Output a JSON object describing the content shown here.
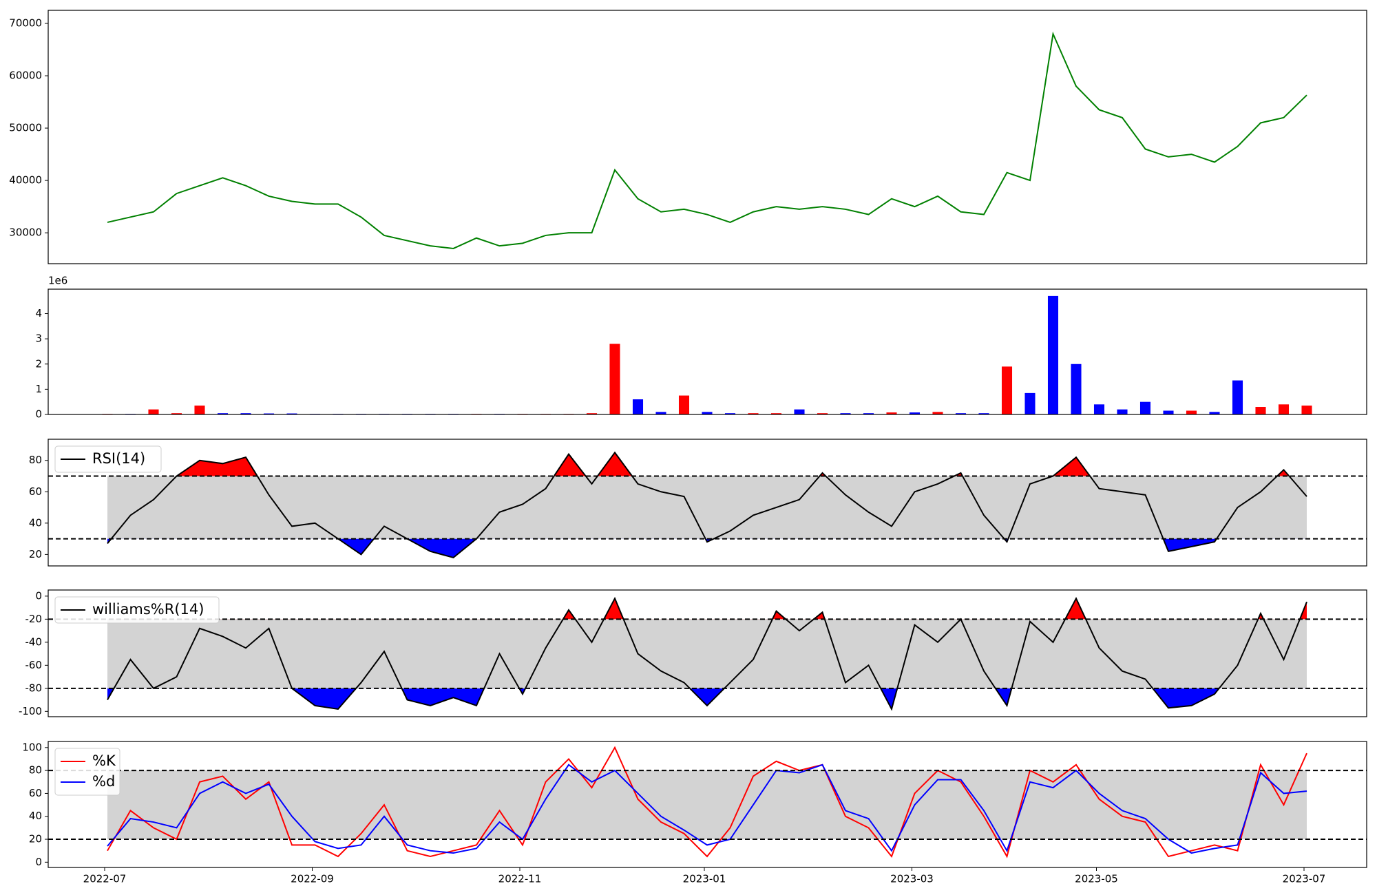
{
  "chart_data": [
    {
      "type": "line",
      "color": "green",
      "values": [
        32000,
        33000,
        34000,
        37500,
        39000,
        40500,
        39000,
        37000,
        36000,
        35500,
        35500,
        33000,
        29500,
        28500,
        27500,
        27000,
        29000,
        27500,
        28000,
        29500,
        30000,
        30000,
        42000,
        36500,
        34000,
        34500,
        33500,
        32000,
        34000,
        35000,
        34500,
        35000,
        34500,
        33500,
        36500,
        35000,
        37000,
        34000,
        33500,
        41500,
        40000,
        68000,
        58000,
        53500,
        52000,
        46000,
        44500,
        45000,
        43500,
        46500,
        51000,
        52000,
        56300
      ],
      "ylim": [
        24100,
        72500
      ],
      "yticks": [
        30000,
        40000,
        50000,
        60000,
        70000
      ]
    },
    {
      "type": "bar",
      "offset_label": "1e6",
      "values": [
        0.02,
        0.02,
        0.2,
        0.05,
        0.35,
        0.05,
        0.05,
        0.04,
        0.04,
        0.02,
        0.02,
        0.02,
        0.02,
        0.02,
        0.02,
        0.02,
        0.02,
        0.02,
        0.02,
        0.02,
        0.02,
        0.05,
        2.8,
        0.6,
        0.1,
        0.75,
        0.1,
        0.05,
        0.05,
        0.05,
        0.2,
        0.05,
        0.05,
        0.05,
        0.08,
        0.08,
        0.1,
        0.05,
        0.05,
        1.9,
        0.85,
        4.7,
        2.0,
        0.4,
        0.2,
        0.5,
        0.15,
        0.15,
        0.1,
        1.35,
        0.3,
        0.4,
        0.35
      ],
      "colors": [
        "red",
        "blue",
        "red",
        "red",
        "red",
        "blue",
        "blue",
        "blue",
        "blue",
        "blue",
        "blue",
        "blue",
        "blue",
        "blue",
        "blue",
        "blue",
        "red",
        "blue",
        "red",
        "red",
        "red",
        "red",
        "red",
        "blue",
        "blue",
        "red",
        "blue",
        "blue",
        "red",
        "red",
        "blue",
        "red",
        "blue",
        "blue",
        "red",
        "blue",
        "red",
        "blue",
        "blue",
        "red",
        "blue",
        "blue",
        "blue",
        "blue",
        "blue",
        "blue",
        "blue",
        "red",
        "blue",
        "blue",
        "red",
        "red",
        "red"
      ],
      "ylim": [
        0,
        4.97
      ],
      "yticks": [
        0,
        1,
        2,
        3,
        4
      ]
    },
    {
      "type": "oscillator",
      "legend": "upper left",
      "series": [
        {
          "name": "RSI(14)",
          "color": "black",
          "values": [
            27,
            45,
            55,
            70,
            80,
            78,
            82,
            58,
            38,
            40,
            30,
            20,
            38,
            30,
            22,
            18,
            30,
            47,
            52,
            62,
            84,
            65,
            85,
            65,
            60,
            57,
            28,
            35,
            45,
            50,
            55,
            72,
            58,
            47,
            38,
            60,
            65,
            72,
            45,
            28,
            65,
            70,
            82,
            62,
            60,
            58,
            22,
            25,
            28,
            50,
            60,
            74,
            57
          ]
        }
      ],
      "ylim": [
        12.7,
        93.5
      ],
      "yticks": [
        20,
        40,
        60,
        80
      ],
      "hlines": [
        30,
        70
      ],
      "band_color": "lightgray",
      "above_color": "red",
      "below_color": "blue"
    },
    {
      "type": "oscillator",
      "legend": "upper left",
      "series": [
        {
          "name": "williams%R(14)",
          "color": "black",
          "values": [
            -90,
            -55,
            -80,
            -70,
            -28,
            -35,
            -45,
            -28,
            -80,
            -95,
            -98,
            -75,
            -48,
            -90,
            -95,
            -88,
            -95,
            -50,
            -85,
            -45,
            -12,
            -40,
            -2,
            -50,
            -65,
            -75,
            -95,
            -75,
            -55,
            -13,
            -30,
            -14,
            -75,
            -60,
            -98,
            -25,
            -40,
            -20,
            -65,
            -95,
            -22,
            -40,
            -2,
            -45,
            -65,
            -72,
            -97,
            -95,
            -85,
            -60,
            -15,
            -55,
            -5
          ]
        }
      ],
      "ylim": [
        -104.6,
        5.3
      ],
      "yticks": [
        -100,
        -80,
        -60,
        -40,
        -20,
        0
      ],
      "hlines": [
        -80,
        -20
      ],
      "band_color": "lightgray",
      "above_color": "red",
      "below_color": "blue"
    },
    {
      "type": "oscillator",
      "legend": "upper left",
      "x": [
        "2022-07",
        "2022-07",
        "2022-07",
        "2022-07",
        "2022-08",
        "2022-08",
        "2022-08",
        "2022-08",
        "2022-08",
        "2022-09",
        "2022-09",
        "2022-09",
        "2022-09",
        "2022-10",
        "2022-10",
        "2022-10",
        "2022-10",
        "2022-10",
        "2022-11",
        "2022-11",
        "2022-11",
        "2022-11",
        "2022-12",
        "2022-12",
        "2022-12",
        "2022-12",
        "2023-01",
        "2023-01",
        "2023-01",
        "2023-01",
        "2023-01",
        "2023-02",
        "2023-02",
        "2023-02",
        "2023-02",
        "2023-03",
        "2023-03",
        "2023-03",
        "2023-03",
        "2023-04",
        "2023-04",
        "2023-04",
        "2023-04",
        "2023-05",
        "2023-05",
        "2023-05",
        "2023-05",
        "2023-05",
        "2023-06",
        "2023-06",
        "2023-06",
        "2023-06",
        "2023-07"
      ],
      "xticks": [
        "2022-07",
        "2022-09",
        "2022-11",
        "2023-01",
        "2023-03",
        "2023-05",
        "2023-07"
      ],
      "series": [
        {
          "name": "%K",
          "color": "red",
          "values": [
            10,
            45,
            30,
            20,
            70,
            75,
            55,
            70,
            15,
            15,
            5,
            25,
            50,
            10,
            5,
            10,
            15,
            45,
            15,
            70,
            90,
            65,
            100,
            55,
            35,
            25,
            5,
            30,
            75,
            88,
            80,
            85,
            40,
            30,
            5,
            60,
            80,
            70,
            40,
            5,
            80,
            70,
            85,
            55,
            40,
            35,
            5,
            10,
            15,
            10,
            85,
            50,
            95
          ]
        },
        {
          "name": "%d",
          "color": "blue",
          "values": [
            14,
            38,
            35,
            30,
            60,
            70,
            60,
            68,
            40,
            18,
            12,
            15,
            40,
            15,
            10,
            8,
            12,
            35,
            20,
            55,
            85,
            70,
            80,
            60,
            40,
            28,
            15,
            20,
            50,
            80,
            78,
            85,
            45,
            38,
            10,
            50,
            72,
            72,
            45,
            10,
            70,
            65,
            80,
            60,
            45,
            38,
            20,
            8,
            12,
            15,
            78,
            60,
            62
          ]
        }
      ],
      "ylim": [
        -4.6,
        105.3
      ],
      "yticks": [
        0,
        20,
        40,
        60,
        80,
        100
      ],
      "hlines": [
        20,
        80
      ],
      "band_color": "lightgray"
    }
  ]
}
